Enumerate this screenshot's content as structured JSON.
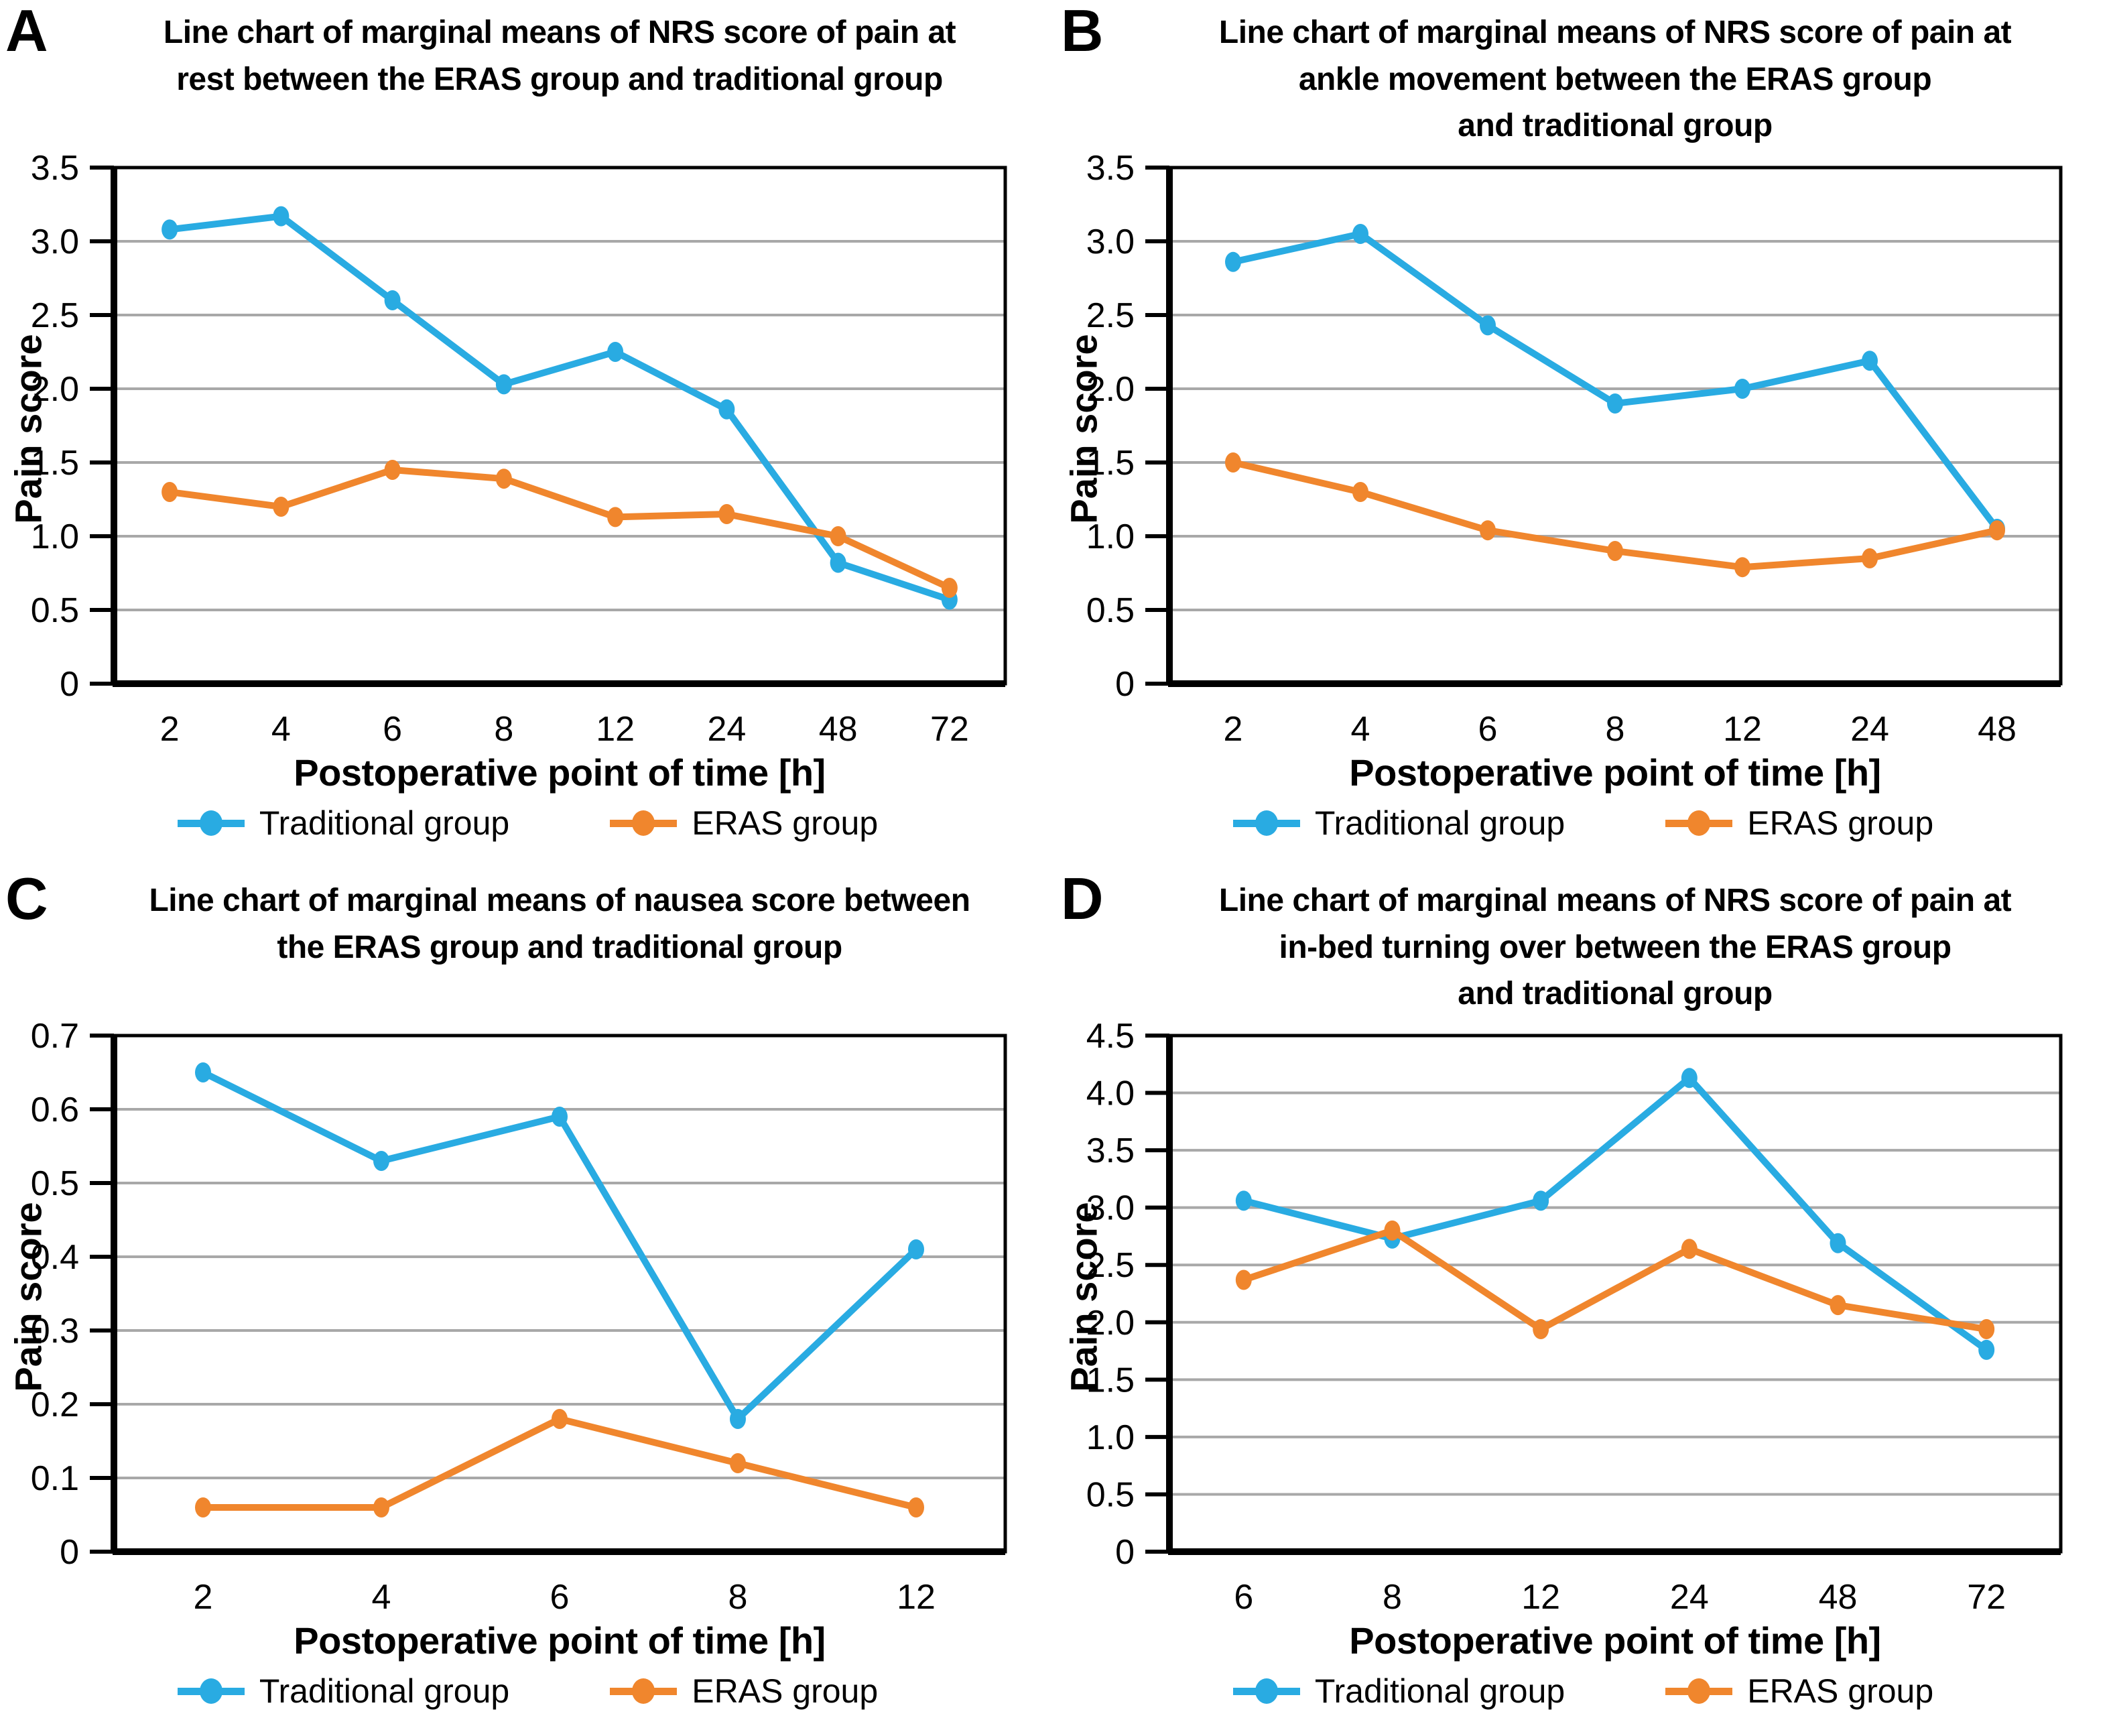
{
  "figure": {
    "background": "#ffffff"
  },
  "colors": {
    "traditional": "#29abe2",
    "eras": "#f0862d",
    "grid": "#a8a8a8",
    "axis": "#000000"
  },
  "chart_data": [
    {
      "letter": "A",
      "type": "line",
      "title": "Line chart of marginal means of NRS score of pain at\nrest between the ERAS group and traditional group",
      "xlabel": "Postoperative point of time [h]",
      "ylabel": "Pain score",
      "categories": [
        2,
        4,
        6,
        8,
        12,
        24,
        48,
        72
      ],
      "ylim": [
        0,
        3.5
      ],
      "ystep": 0.5,
      "grid": true,
      "legend_position": "bottom",
      "series": [
        {
          "name": "Traditional group",
          "color": "#29abe2",
          "values": [
            3.08,
            3.17,
            2.6,
            2.03,
            2.25,
            1.86,
            0.82,
            0.57
          ]
        },
        {
          "name": "ERAS group",
          "color": "#f0862d",
          "values": [
            1.3,
            1.2,
            1.45,
            1.39,
            1.13,
            1.15,
            1.0,
            0.65
          ]
        }
      ]
    },
    {
      "letter": "B",
      "type": "line",
      "title": "Line chart of marginal means of NRS score of pain at\nankle movement between the ERAS group\nand traditional group",
      "xlabel": "Postoperative point of time [h]",
      "ylabel": "Pain score",
      "categories": [
        2,
        4,
        6,
        8,
        12,
        24,
        48
      ],
      "ylim": [
        0,
        3.5
      ],
      "ystep": 0.5,
      "grid": true,
      "legend_position": "bottom",
      "series": [
        {
          "name": "Traditional group",
          "color": "#29abe2",
          "values": [
            2.86,
            3.05,
            2.43,
            1.9,
            2.0,
            2.19,
            1.05
          ]
        },
        {
          "name": "ERAS group",
          "color": "#f0862d",
          "values": [
            1.5,
            1.3,
            1.04,
            0.9,
            0.79,
            0.85,
            1.04
          ]
        }
      ]
    },
    {
      "letter": "C",
      "type": "line",
      "title": "Line chart of marginal means of nausea score between\nthe ERAS group and traditional group",
      "xlabel": "Postoperative point of time [h]",
      "ylabel": "Pain score",
      "categories": [
        2,
        4,
        6,
        8,
        12
      ],
      "ylim": [
        0,
        0.7
      ],
      "ystep": 0.1,
      "grid": true,
      "legend_position": "bottom",
      "series": [
        {
          "name": "Traditional group",
          "color": "#29abe2",
          "values": [
            0.65,
            0.53,
            0.59,
            0.18,
            0.41
          ]
        },
        {
          "name": "ERAS group",
          "color": "#f0862d",
          "values": [
            0.06,
            0.06,
            0.18,
            0.12,
            0.06
          ]
        }
      ]
    },
    {
      "letter": "D",
      "type": "line",
      "title": "Line chart of marginal means of NRS score of pain at\nin-bed turning over between the ERAS group\nand traditional group",
      "xlabel": "Postoperative point of time [h]",
      "ylabel": "Pain score",
      "categories": [
        6,
        8,
        12,
        24,
        48,
        72
      ],
      "ylim": [
        0,
        4.5
      ],
      "ystep": 0.5,
      "grid": true,
      "legend_position": "bottom",
      "series": [
        {
          "name": "Traditional group",
          "color": "#29abe2",
          "values": [
            3.06,
            2.73,
            3.06,
            4.13,
            2.69,
            1.76
          ]
        },
        {
          "name": "ERAS group",
          "color": "#f0862d",
          "values": [
            2.37,
            2.8,
            1.94,
            2.64,
            2.15,
            1.94
          ]
        }
      ]
    }
  ]
}
